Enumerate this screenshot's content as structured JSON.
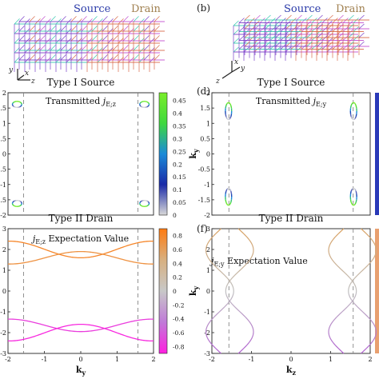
{
  "labels": {
    "source": "Source",
    "drain": "Drain",
    "panel_b": "(b)",
    "panel_d": "(d)",
    "panel_f": "(f)"
  },
  "axes_labels": {
    "x": "x",
    "y": "y",
    "z": "z"
  },
  "colors": {
    "source_text": "#2a3aa8",
    "drain_text": "#a08050",
    "lattice_a": "#38c7b0",
    "lattice_b": "#7a3fc9",
    "lattice_c": "#d86a4a",
    "lattice_d": "#c24fd0"
  },
  "chart_data": [
    {
      "id": "c",
      "type": "scatter",
      "title": "Type I Source",
      "annotation": "Transmitted j_{E;z}",
      "annotation_main": "Transmitted ",
      "annotation_sym": "j",
      "annotation_sub": "E;z",
      "xlabel": "",
      "ylabel": "",
      "xlim": [
        -2,
        2
      ],
      "ylim": [
        -2,
        2
      ],
      "xticks": [],
      "yticks": [
        "-2",
        "-1.5",
        "-1",
        "-0.5",
        "0",
        "0.5",
        "1",
        "1.5",
        "2"
      ],
      "ytick_values": [
        -2,
        -1.5,
        -1,
        -0.5,
        0,
        0.5,
        1,
        1.5,
        2
      ],
      "dashed_x": [
        -1.5708,
        1.5708
      ],
      "colorbar": {
        "ticks": [
          "0.45",
          "0.4",
          "0.35",
          "0.3",
          "0.25",
          "0.2",
          "0.15",
          "0.1",
          "0.05",
          "0"
        ],
        "tick_values": [
          0.45,
          0.4,
          0.35,
          0.3,
          0.25,
          0.2,
          0.15,
          0.1,
          0.05,
          0
        ],
        "range": [
          0,
          0.48
        ],
        "stops": [
          "#d8d8d8",
          "#1a2aa8",
          "#1a8ad8",
          "#3ed83e",
          "#7aee2a"
        ]
      },
      "series": [
        {
          "cx": -1.75,
          "cy": 1.62,
          "rx": 0.13,
          "ry": 0.1
        },
        {
          "cx": 1.75,
          "cy": 1.62,
          "rx": 0.13,
          "ry": 0.1
        },
        {
          "cx": -1.75,
          "cy": -1.62,
          "rx": 0.13,
          "ry": 0.1
        },
        {
          "cx": 1.75,
          "cy": -1.62,
          "rx": 0.13,
          "ry": 0.1
        }
      ]
    },
    {
      "id": "e",
      "type": "line",
      "title": "Type II Drain",
      "annotation": "j_{E;z} Expectation Value",
      "annotation_main": " Expectation Value",
      "annotation_sym": "j",
      "annotation_sub": "E;z",
      "xlabel": "k_y",
      "ylabel": "",
      "xlim": [
        -2,
        2
      ],
      "ylim": [
        -3,
        3
      ],
      "xticks": [
        "-2",
        "-1",
        "0",
        "1",
        "2"
      ],
      "xtick_values": [
        -2,
        -1,
        0,
        1,
        2
      ],
      "yticks": [
        "-3",
        "-2",
        "-1",
        "0",
        "1",
        "2",
        "3"
      ],
      "ytick_values": [
        -3,
        -2,
        -1,
        0,
        1,
        2,
        3
      ],
      "dashed_x": [
        -1.5708,
        1.5708
      ],
      "colorbar": {
        "ticks": [
          "0.8",
          "0.6",
          "0.4",
          "0.2",
          "0",
          "-0.2",
          "-0.4",
          "-0.6",
          "-0.8"
        ],
        "tick_values": [
          0.8,
          0.6,
          0.4,
          0.2,
          0,
          -0.2,
          -0.4,
          -0.6,
          -0.8
        ],
        "range": [
          -0.9,
          0.9
        ],
        "stops": [
          "#ff1ee0",
          "#c07ad8",
          "#c8c8c8",
          "#d8b080",
          "#ff7a10"
        ]
      },
      "series": [
        {
          "name": "upper_top",
          "center": 2.0,
          "amp": 0.4,
          "sign": -1,
          "value": 0.8
        },
        {
          "name": "upper_bottom",
          "center": 1.6,
          "amp": 0.3,
          "sign": 1,
          "value": 0.7
        },
        {
          "name": "lower_top",
          "center": -1.65,
          "amp": 0.3,
          "sign": -1,
          "value": -0.75
        },
        {
          "name": "lower_bottom",
          "center": -2.0,
          "amp": 0.4,
          "sign": 1,
          "value": -0.85
        }
      ]
    },
    {
      "id": "d",
      "type": "scatter",
      "title": "Type I Source",
      "annotation": "Transmitted j_{E;y}",
      "annotation_main": "Transmitted ",
      "annotation_sym": "j",
      "annotation_sub": "E;y",
      "xlabel": "",
      "ylabel": "k_y",
      "xlim": [
        -2,
        2
      ],
      "ylim": [
        -2,
        2
      ],
      "xticks": [],
      "yticks": [
        "2",
        "1.5",
        "1",
        "0.5",
        "0",
        "-0.5",
        "-1",
        "-1.5",
        "-2"
      ],
      "ytick_values": [
        2,
        1.5,
        1,
        0.5,
        0,
        -0.5,
        -1,
        -1.5,
        -2
      ],
      "dashed_x": [
        -1.5708,
        1.5708
      ],
      "series": [
        {
          "cx": -1.58,
          "cy": 1.4,
          "rx": 0.08,
          "ry": 0.28
        },
        {
          "cx": 1.58,
          "cy": 1.4,
          "rx": 0.08,
          "ry": 0.28
        },
        {
          "cx": -1.58,
          "cy": -1.4,
          "rx": 0.08,
          "ry": 0.28
        },
        {
          "cx": 1.58,
          "cy": -1.4,
          "rx": 0.08,
          "ry": 0.28
        }
      ]
    },
    {
      "id": "f",
      "type": "line",
      "title": "Type II Drain",
      "annotation": "j_{E;y} Expectation Value",
      "annotation_main": " Expectation Value",
      "annotation_sym": "j",
      "annotation_sub": "E;y",
      "xlabel": "k_z",
      "ylabel": "k_y",
      "xlim": [
        -2,
        2
      ],
      "ylim": [
        -3,
        3
      ],
      "xticks": [
        "-2",
        "-1",
        "0",
        "1",
        "2"
      ],
      "xtick_values": [
        -2,
        -1,
        0,
        1,
        2
      ],
      "yticks": [
        "3",
        "2",
        "1",
        "0",
        "-1",
        "-2",
        "-3"
      ],
      "ytick_values": [
        3,
        2,
        1,
        0,
        -1,
        -2,
        -3
      ],
      "dashed_x": [
        -1.5708,
        1.5708
      ],
      "series": [
        {
          "name": "left_a",
          "center": -1.8,
          "amp": 0.35,
          "sign": 1
        },
        {
          "name": "left_b",
          "center": -1.3,
          "amp": 0.35,
          "sign": -1
        },
        {
          "name": "right_a",
          "center": 1.8,
          "amp": 0.35,
          "sign": -1
        },
        {
          "name": "right_b",
          "center": 1.3,
          "amp": 0.35,
          "sign": 1
        }
      ]
    }
  ]
}
